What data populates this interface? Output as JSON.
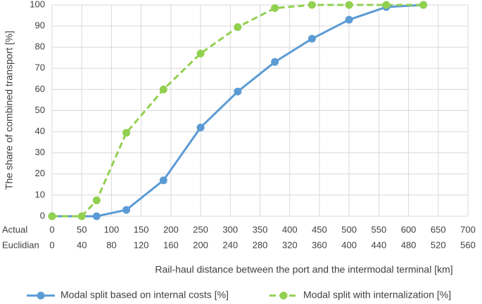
{
  "chart_data": {
    "type": "line",
    "y_label": "The share of combined transport [%]",
    "x_label": "Rail-haul distance between the port and the intermodal terminal [km]",
    "xlim": [
      0,
      700
    ],
    "ylim": [
      0,
      100
    ],
    "yticks": [
      0,
      10,
      20,
      30,
      40,
      50,
      60,
      70,
      80,
      90,
      100
    ],
    "xtick_rows": [
      {
        "name": "Actual",
        "ticks": [
          0,
          50,
          100,
          150,
          200,
          250,
          300,
          350,
          400,
          450,
          500,
          550,
          600,
          650,
          700
        ]
      },
      {
        "name": "Euclidian",
        "ticks": [
          {
            "value": 0,
            "label": "0"
          },
          {
            "value": 50,
            "label": "40"
          },
          {
            "value": 100,
            "label": "80"
          },
          {
            "value": 150,
            "label": "120"
          },
          {
            "value": 200,
            "label": "160"
          },
          {
            "value": 250,
            "label": "200"
          },
          {
            "value": 300,
            "label": "240"
          },
          {
            "value": 350,
            "label": "280"
          },
          {
            "value": 400,
            "label": "320"
          },
          {
            "value": 450,
            "label": "360"
          },
          {
            "value": 500,
            "label": "400"
          },
          {
            "value": 550,
            "label": "440"
          },
          {
            "value": 600,
            "label": "480"
          },
          {
            "value": 650,
            "label": "520"
          },
          {
            "value": 700,
            "label": "560"
          }
        ]
      }
    ],
    "grid": true,
    "legend": "bottom",
    "series": [
      {
        "name": "Modal split based on internal costs [%]",
        "color": "#5b9bd5",
        "dashed": false,
        "x": [
          0,
          75,
          125,
          187.5,
          250,
          312.5,
          375,
          437.5,
          500,
          562.5,
          625
        ],
        "values": [
          0,
          0,
          3,
          17,
          42,
          59,
          73,
          84,
          93,
          99,
          100
        ]
      },
      {
        "name": "Modal split with internalization [%]",
        "color": "#92d050",
        "dashed": true,
        "x": [
          0,
          50,
          75,
          125,
          187.5,
          250,
          312.5,
          375,
          437.5,
          500,
          562.5,
          625
        ],
        "values": [
          0,
          0,
          7.5,
          39.5,
          60,
          77,
          89.5,
          98.5,
          100,
          100,
          100,
          100
        ]
      }
    ]
  }
}
